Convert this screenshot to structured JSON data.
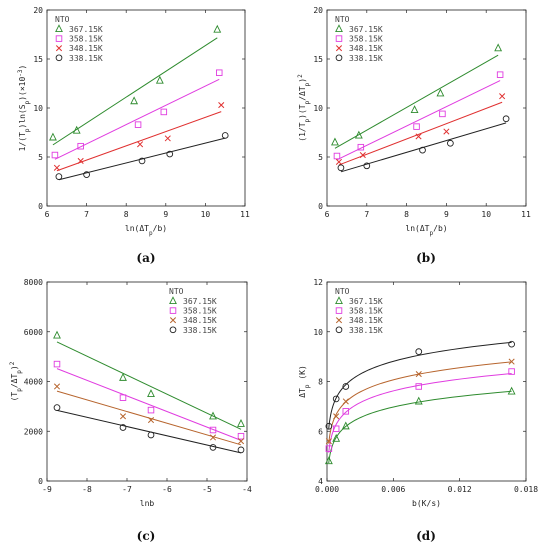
{
  "colors": {
    "series_367": "#2e8b2e",
    "series_358": "#e03ce0",
    "series_348": "#e03030",
    "series_338": "#222222"
  },
  "chart_data": [
    {
      "panel_label": "(a)",
      "type": "scatter",
      "legend_title": "NTO",
      "legend_position": "top-left",
      "ylabel": "1/(T_p)ln(S_p)(×10^-3)",
      "xlabel": "ln(ΔT_p/b)",
      "xlim": [
        6,
        11
      ],
      "ylim": [
        0,
        20
      ],
      "xticks": [
        "6",
        "7",
        "8",
        "9",
        "10",
        "11"
      ],
      "yticks": [
        "0",
        "5",
        "10",
        "15",
        "20"
      ],
      "fit": "linear",
      "series": [
        {
          "name": "367.15K",
          "marker": "triangle",
          "color": "#2e8b2e",
          "x": [
            6.15,
            6.75,
            8.2,
            8.85,
            10.3
          ],
          "y": [
            7.0,
            7.7,
            10.7,
            12.8,
            18.0
          ]
        },
        {
          "name": "358.15K",
          "marker": "square",
          "color": "#e03ce0",
          "x": [
            6.2,
            6.85,
            8.3,
            8.95,
            10.35
          ],
          "y": [
            5.2,
            6.1,
            8.3,
            9.6,
            13.6
          ]
        },
        {
          "name": "348.15K",
          "marker": "cross",
          "color": "#e03030",
          "x": [
            6.25,
            6.85,
            8.35,
            9.05,
            10.4
          ],
          "y": [
            3.9,
            4.6,
            6.3,
            6.9,
            10.3
          ]
        },
        {
          "name": "338.15K",
          "marker": "circle",
          "color": "#222222",
          "x": [
            6.3,
            7.0,
            8.4,
            9.1,
            10.5
          ],
          "y": [
            3.0,
            3.2,
            4.6,
            5.3,
            7.2
          ]
        }
      ]
    },
    {
      "panel_label": "(b)",
      "type": "scatter",
      "legend_title": "NTO",
      "legend_position": "top-left",
      "ylabel": "(1/T_p)(T_p/ΔT_p)^2",
      "xlabel": "ln(ΔT_p/b)",
      "xlim": [
        6,
        11
      ],
      "ylim": [
        0,
        20
      ],
      "xticks": [
        "6",
        "7",
        "8",
        "9",
        "10",
        "11"
      ],
      "yticks": [
        "0",
        "5",
        "10",
        "15",
        "20"
      ],
      "fit": "linear",
      "series": [
        {
          "name": "367.15K",
          "marker": "triangle",
          "color": "#2e8b2e",
          "x": [
            6.2,
            6.8,
            8.2,
            8.85,
            10.3
          ],
          "y": [
            6.5,
            7.2,
            9.8,
            11.5,
            16.1
          ]
        },
        {
          "name": "358.15K",
          "marker": "square",
          "color": "#e03ce0",
          "x": [
            6.25,
            6.85,
            8.25,
            8.9,
            10.35
          ],
          "y": [
            5.1,
            6.0,
            8.1,
            9.4,
            13.4
          ]
        },
        {
          "name": "348.15K",
          "marker": "cross",
          "color": "#e03030",
          "x": [
            6.3,
            6.9,
            8.3,
            9.0,
            10.4
          ],
          "y": [
            4.5,
            5.2,
            7.1,
            7.6,
            11.2
          ]
        },
        {
          "name": "338.15K",
          "marker": "circle",
          "color": "#222222",
          "x": [
            6.35,
            7.0,
            8.4,
            9.1,
            10.5
          ],
          "y": [
            3.9,
            4.1,
            5.7,
            6.4,
            8.9
          ]
        }
      ]
    },
    {
      "panel_label": "(c)",
      "type": "scatter",
      "legend_title": "NTO",
      "legend_position": "top-right",
      "ylabel": "(T_p/ΔT_p)^2",
      "xlabel": "lnb",
      "xlim": [
        -9,
        -4
      ],
      "ylim": [
        0,
        8000
      ],
      "xticks": [
        "-9",
        "-8",
        "-7",
        "-6",
        "-5",
        "-4"
      ],
      "yticks": [
        "0",
        "2000",
        "4000",
        "6000",
        "8000"
      ],
      "fit": "linear",
      "series": [
        {
          "name": "367.15K",
          "marker": "triangle",
          "color": "#2e8b2e",
          "x": [
            -8.75,
            -7.1,
            -6.4,
            -4.85,
            -4.15
          ],
          "y": [
            5850,
            4150,
            3500,
            2600,
            2300
          ]
        },
        {
          "name": "358.15K",
          "marker": "square",
          "color": "#e03ce0",
          "x": [
            -8.75,
            -7.1,
            -6.4,
            -4.85,
            -4.15
          ],
          "y": [
            4700,
            3350,
            2850,
            2050,
            1800
          ]
        },
        {
          "name": "348.15K",
          "marker": "cross",
          "color": "#b7652e",
          "x": [
            -8.75,
            -7.1,
            -6.4,
            -4.85,
            -4.15
          ],
          "y": [
            3800,
            2600,
            2450,
            1750,
            1600
          ]
        },
        {
          "name": "338.15K",
          "marker": "circle",
          "color": "#222222",
          "x": [
            -8.75,
            -7.1,
            -6.4,
            -4.85,
            -4.15
          ],
          "y": [
            2950,
            2150,
            1850,
            1350,
            1250
          ]
        }
      ]
    },
    {
      "panel_label": "(d)",
      "type": "scatter",
      "legend_title": "NTO",
      "legend_position": "top-left",
      "ylabel": "ΔT_p (K)",
      "xlabel": "b(K/s)",
      "xlim": [
        0,
        0.018
      ],
      "ylim": [
        4,
        12
      ],
      "xticks": [
        "0.000",
        "0.006",
        "0.012",
        "0.018"
      ],
      "yticks": [
        "4",
        "6",
        "8",
        "10",
        "12"
      ],
      "fit": "curve",
      "series": [
        {
          "name": "367.15K",
          "marker": "triangle",
          "color": "#2e8b2e",
          "x": [
            0.00017,
            0.00083,
            0.0017,
            0.0083,
            0.0167
          ],
          "y": [
            4.8,
            5.7,
            6.2,
            7.2,
            7.6
          ]
        },
        {
          "name": "358.15K",
          "marker": "square",
          "color": "#e03ce0",
          "x": [
            0.00017,
            0.00083,
            0.0017,
            0.0083,
            0.0167
          ],
          "y": [
            5.3,
            6.1,
            6.8,
            7.8,
            8.4
          ]
        },
        {
          "name": "348.15K",
          "marker": "cross",
          "color": "#b7652e",
          "x": [
            0.00017,
            0.00083,
            0.0017,
            0.0083,
            0.0167
          ],
          "y": [
            5.6,
            6.6,
            7.2,
            8.3,
            8.8
          ]
        },
        {
          "name": "338.15K",
          "marker": "circle",
          "color": "#222222",
          "x": [
            0.00017,
            0.00083,
            0.0017,
            0.0083,
            0.0167
          ],
          "y": [
            6.2,
            7.3,
            7.8,
            9.2,
            9.5
          ]
        }
      ]
    }
  ]
}
